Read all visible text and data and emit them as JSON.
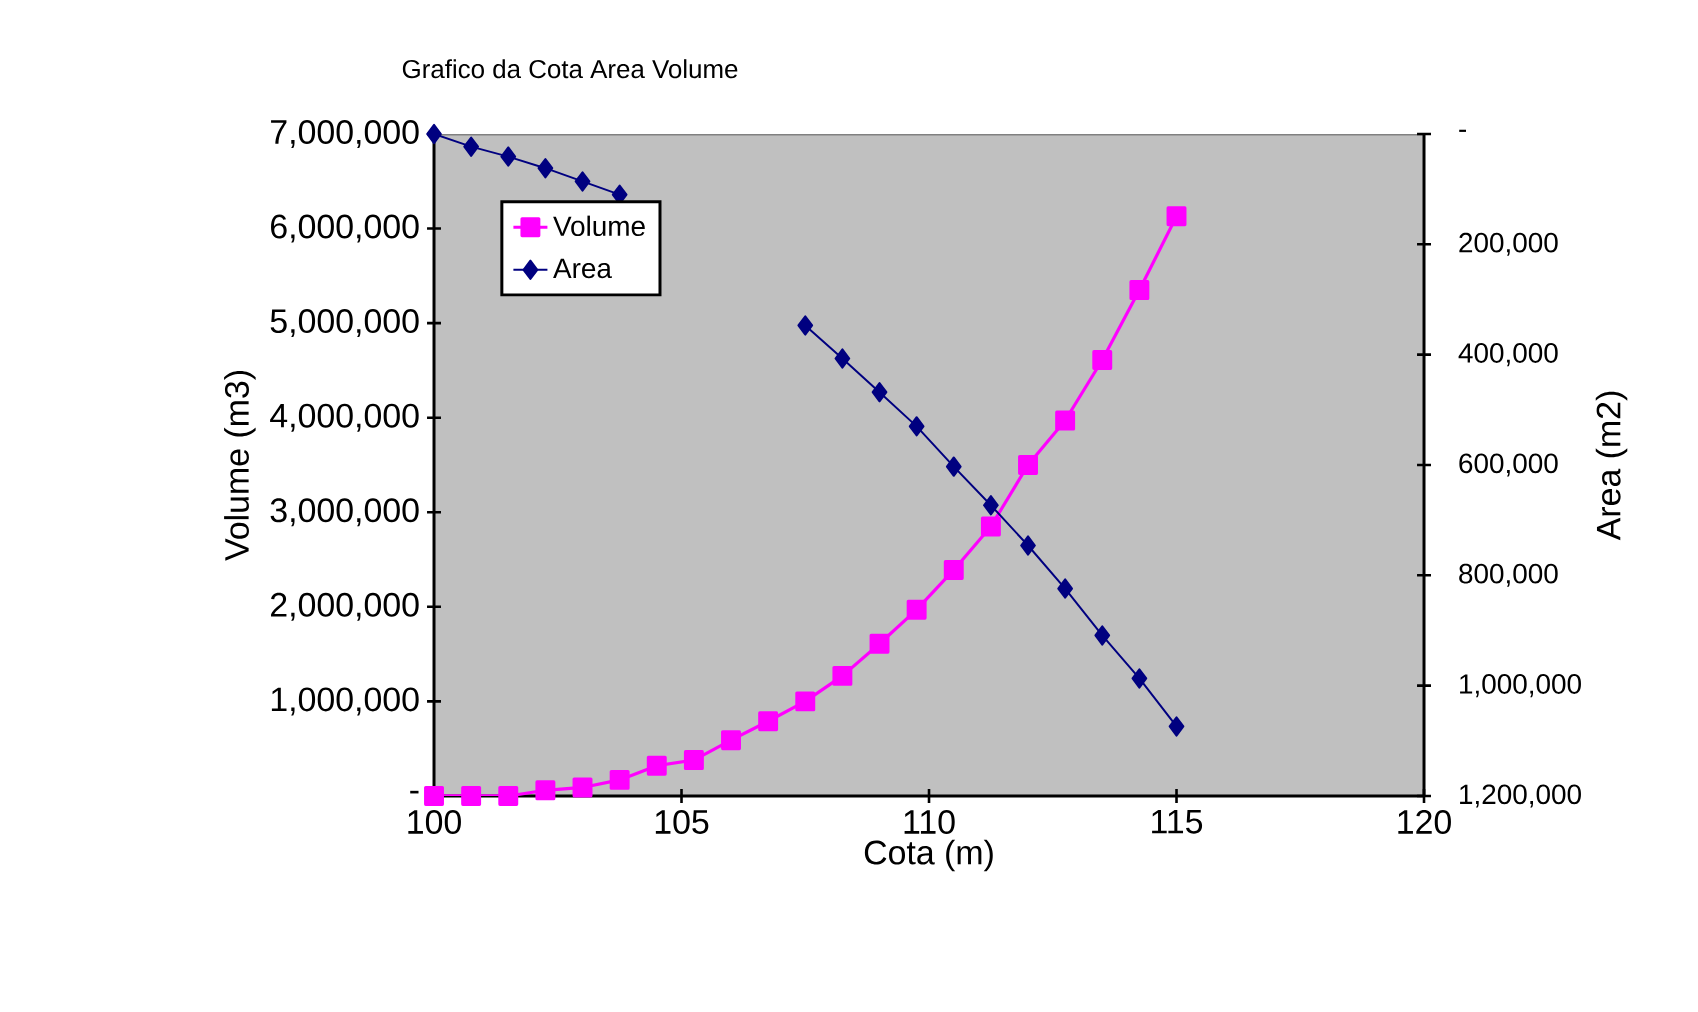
{
  "chart_data": {
    "type": "line",
    "title": "Grafico da Cota Area Volume",
    "xlabel": "Cota (m)",
    "ylabel": "Volume (m3)",
    "y2label": "Area (m2)",
    "x": [
      100,
      100.75,
      101.5,
      102.25,
      103,
      103.75,
      104.5,
      105.25,
      106,
      106.75,
      107.5,
      108.25,
      109,
      109.75,
      110.5,
      111.25,
      112,
      112.75,
      113.5,
      114.25,
      115
    ],
    "series": [
      {
        "name": "Volume",
        "color": "#ff00ff",
        "marker": "square",
        "values": [
          0,
          0,
          0,
          60000,
          90000,
          170000,
          320000,
          380000,
          590000,
          790000,
          1000000,
          1270000,
          1610000,
          1970000,
          2390000,
          2850000,
          3500000,
          3970000,
          4610000,
          5350000,
          6130000
        ]
      },
      {
        "name": "Area",
        "color": "#000080",
        "marker": "diamond",
        "axis": "y2",
        "values": [
          0,
          23000,
          41000,
          62000,
          86000,
          110000,
          null,
          null,
          null,
          null,
          347000,
          407000,
          468000,
          530000,
          603000,
          673000,
          746000,
          824000,
          909000,
          987000,
          1074000
        ]
      }
    ],
    "xlim": [
      100,
      120
    ],
    "xticks": [
      100,
      105,
      110,
      115,
      120
    ],
    "ylim": [
      0,
      7000000
    ],
    "yticks": [
      {
        "value": 0,
        "label": "-"
      },
      {
        "value": 1000000,
        "label": "1,000,000"
      },
      {
        "value": 2000000,
        "label": "2,000,000"
      },
      {
        "value": 3000000,
        "label": "3,000,000"
      },
      {
        "value": 4000000,
        "label": "4,000,000"
      },
      {
        "value": 5000000,
        "label": "5,000,000"
      },
      {
        "value": 6000000,
        "label": "6,000,000"
      },
      {
        "value": 7000000,
        "label": "7,000,000"
      }
    ],
    "y2lim": [
      1200000,
      0
    ],
    "y2ticks": [
      {
        "value": 0,
        "label": "-"
      },
      {
        "value": 200000,
        "label": "200,000"
      },
      {
        "value": 400000,
        "label": "400,000"
      },
      {
        "value": 600000,
        "label": "600,000"
      },
      {
        "value": 800000,
        "label": "800,000"
      },
      {
        "value": 1000000,
        "label": "1,000,000"
      },
      {
        "value": 1200000,
        "label": "1,200,000"
      }
    ],
    "grid": false,
    "legend": "top left",
    "line_style": "solid"
  }
}
